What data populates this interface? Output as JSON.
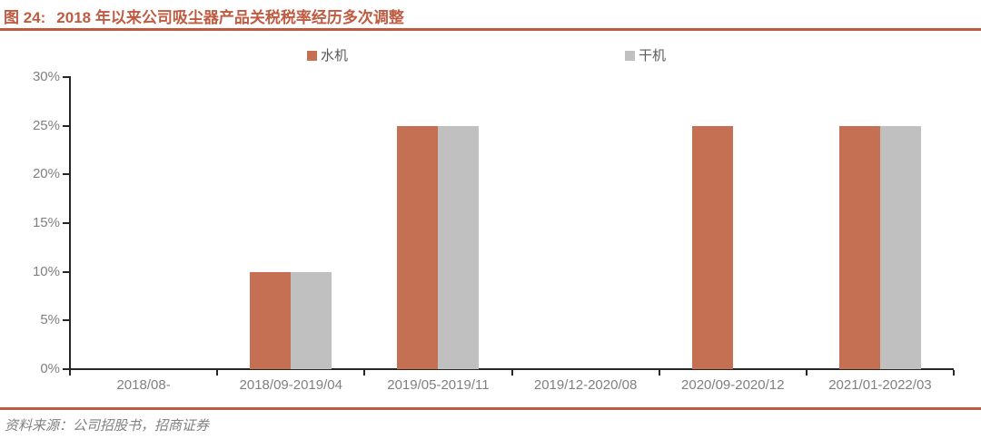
{
  "title": {
    "prefix": "图 24:",
    "text": "2018 年以来公司吸尘器产品关税税率经历多次调整"
  },
  "source": {
    "text": "资料来源：公司招股书，招商证券"
  },
  "colors": {
    "accent": "#BF5B41",
    "axis_line": "#262626",
    "tick_label": "#808080",
    "legend_text": "#595959",
    "source_text": "#808080",
    "series_water": "#C57053",
    "series_dry": "#C0C0C0"
  },
  "chart_data": {
    "type": "bar",
    "title": "2018 年以来公司吸尘器产品关税税率经历多次调整",
    "categories": [
      "2018/08-",
      "2018/09-2019/04",
      "2019/05-2019/11",
      "2019/12-2020/08",
      "2020/09-2020/12",
      "2021/01-2022/03"
    ],
    "series": [
      {
        "name": "水机",
        "color": "#C57053",
        "values": [
          0,
          10,
          25,
          0,
          25,
          25
        ]
      },
      {
        "name": "干机",
        "color": "#C0C0C0",
        "values": [
          0,
          10,
          25,
          0,
          0,
          25
        ]
      }
    ],
    "xlabel": "",
    "ylabel": "",
    "ylim": [
      0,
      30
    ],
    "ytick_step": 5,
    "ytick_suffix": "%",
    "grid": false,
    "legend_position": "top"
  }
}
